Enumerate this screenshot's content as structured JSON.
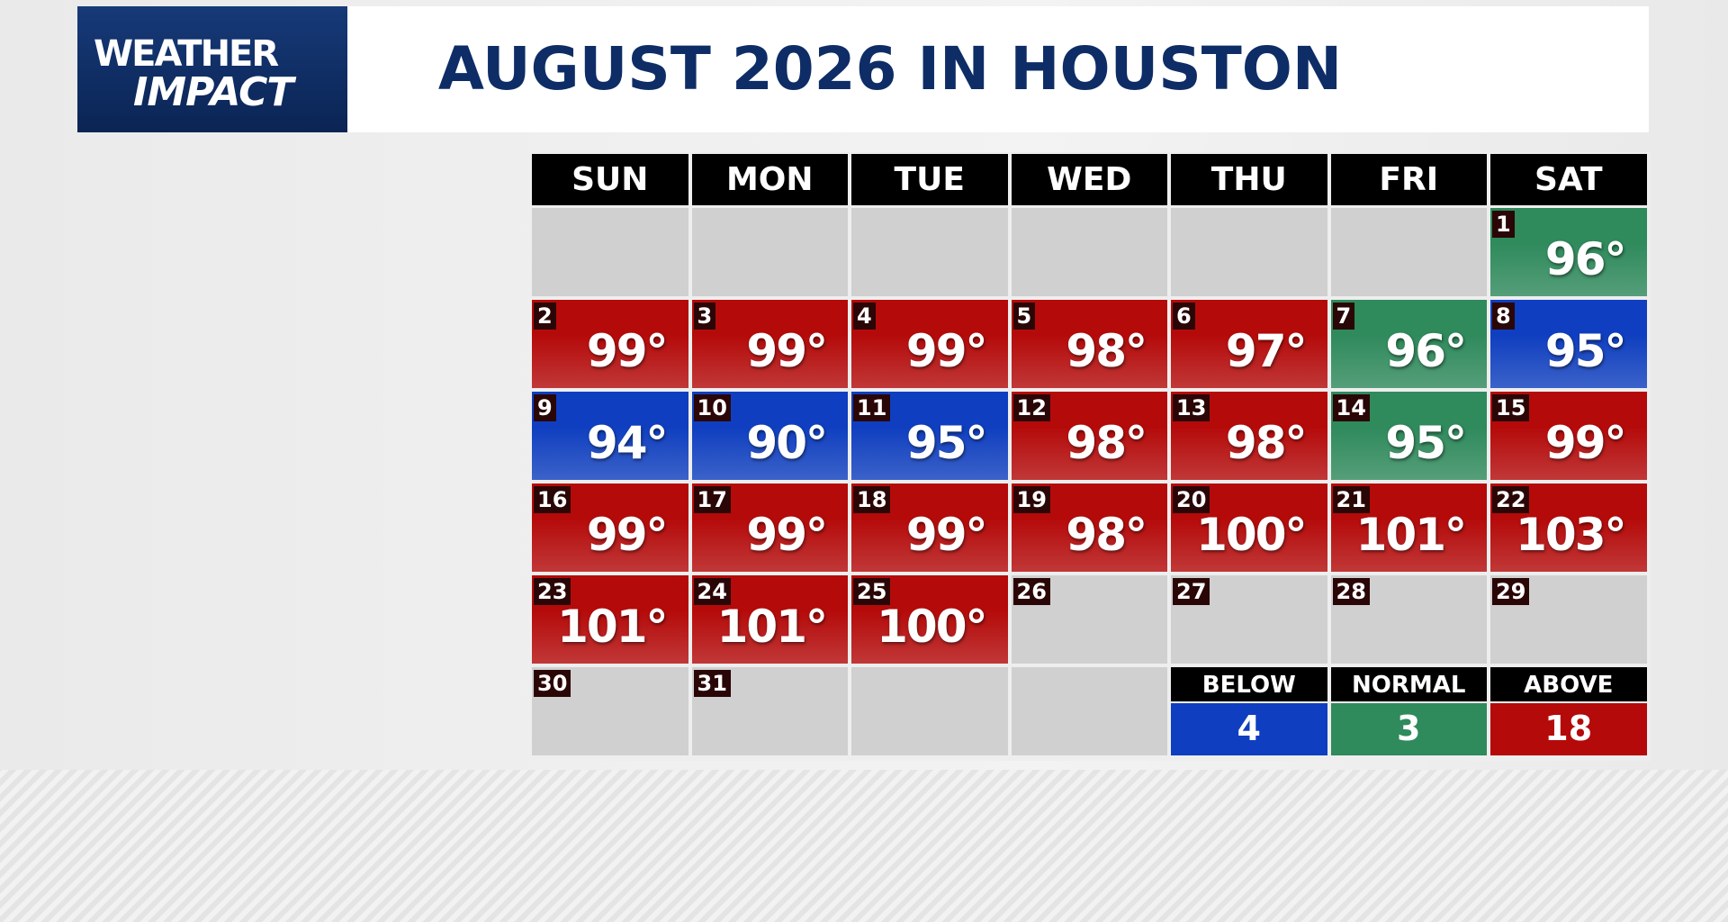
{
  "header": {
    "logo_line1": "WEATHER",
    "logo_line2": "IMPACT",
    "title": "AUGUST 2026 IN HOUSTON"
  },
  "calendar": {
    "weekdays": [
      "SUN",
      "MON",
      "TUE",
      "WED",
      "THU",
      "FRI",
      "SAT"
    ],
    "days": [
      {
        "day": 1,
        "temp": "96°",
        "color": "#2f8a5c"
      },
      {
        "day": 2,
        "temp": "99°",
        "color": "#b50a0a"
      },
      {
        "day": 3,
        "temp": "99°",
        "color": "#b50a0a"
      },
      {
        "day": 4,
        "temp": "99°",
        "color": "#b50a0a"
      },
      {
        "day": 5,
        "temp": "98°",
        "color": "#b50a0a"
      },
      {
        "day": 6,
        "temp": "97°",
        "color": "#b50a0a"
      },
      {
        "day": 7,
        "temp": "96°",
        "color": "#2f8a5c"
      },
      {
        "day": 8,
        "temp": "95°",
        "color": "#0f3fc0"
      },
      {
        "day": 9,
        "temp": "94°",
        "color": "#0f3fc0"
      },
      {
        "day": 10,
        "temp": "90°",
        "color": "#0f3fc0"
      },
      {
        "day": 11,
        "temp": "95°",
        "color": "#0f3fc0"
      },
      {
        "day": 12,
        "temp": "98°",
        "color": "#b50a0a"
      },
      {
        "day": 13,
        "temp": "98°",
        "color": "#b50a0a"
      },
      {
        "day": 14,
        "temp": "95°",
        "color": "#2f8a5c"
      },
      {
        "day": 15,
        "temp": "99°",
        "color": "#b50a0a"
      },
      {
        "day": 16,
        "temp": "99°",
        "color": "#b50a0a"
      },
      {
        "day": 17,
        "temp": "99°",
        "color": "#b50a0a"
      },
      {
        "day": 18,
        "temp": "99°",
        "color": "#b50a0a"
      },
      {
        "day": 19,
        "temp": "98°",
        "color": "#b50a0a"
      },
      {
        "day": 20,
        "temp": "100°",
        "color": "#b50a0a"
      },
      {
        "day": 21,
        "temp": "101°",
        "color": "#b50a0a"
      },
      {
        "day": 22,
        "temp": "103°",
        "color": "#b50a0a"
      },
      {
        "day": 23,
        "temp": "101°",
        "color": "#b50a0a"
      },
      {
        "day": 24,
        "temp": "101°",
        "color": "#b50a0a"
      },
      {
        "day": 25,
        "temp": "100°",
        "color": "#b50a0a"
      },
      {
        "day": 26
      },
      {
        "day": 27
      },
      {
        "day": 28
      },
      {
        "day": 29
      },
      {
        "day": 30
      },
      {
        "day": 31
      }
    ],
    "legend": [
      {
        "label": "BELOW",
        "count": 4,
        "color": "#0f3fc0"
      },
      {
        "label": "NORMAL",
        "count": 3,
        "color": "#2f8a5c"
      },
      {
        "label": "ABOVE",
        "count": 18,
        "color": "#b50a0a"
      }
    ]
  }
}
